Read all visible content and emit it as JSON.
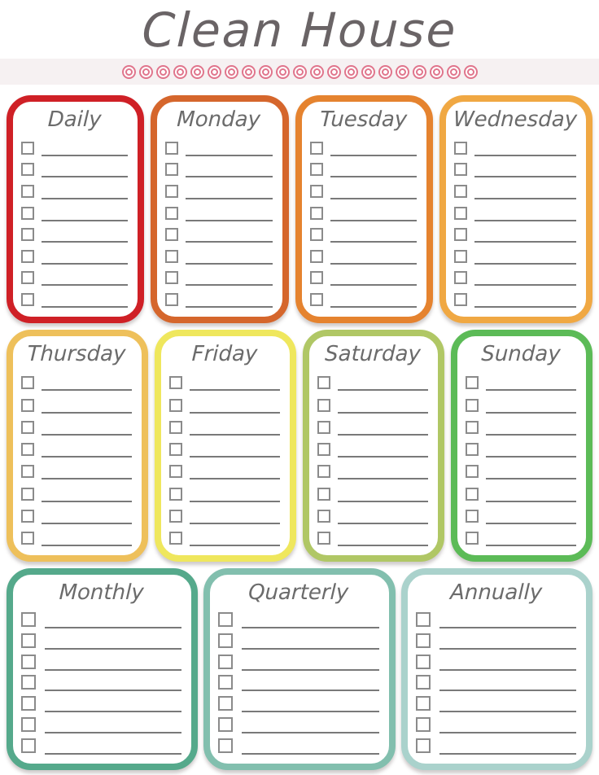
{
  "page": {
    "title": "Clean House",
    "title_color": "#6a6466",
    "background": "#ffffff"
  },
  "decor": {
    "circle_count": 21,
    "circle_color": "#e0758c",
    "band_color": "#f6f1f2"
  },
  "colors": {
    "card_title_text": "#6b6b6b",
    "checkbox_border": "#8b8b8b",
    "writing_line": "#797979"
  },
  "sections": [
    {
      "name": "week-row-1",
      "columns": 4,
      "cards": [
        {
          "label": "Daily",
          "border_color": "#cf2026",
          "lines": 8
        },
        {
          "label": "Monday",
          "border_color": "#d5662c",
          "lines": 8
        },
        {
          "label": "Tuesday",
          "border_color": "#e5832f",
          "lines": 8
        },
        {
          "label": "Wednesday",
          "border_color": "#f0a843",
          "lines": 8
        }
      ]
    },
    {
      "name": "week-row-2",
      "columns": 4,
      "cards": [
        {
          "label": "Thursday",
          "border_color": "#eec05b",
          "lines": 8
        },
        {
          "label": "Friday",
          "border_color": "#efe75d",
          "lines": 8
        },
        {
          "label": "Saturday",
          "border_color": "#b0c765",
          "lines": 8
        },
        {
          "label": "Sunday",
          "border_color": "#5cbb57",
          "lines": 8
        }
      ]
    },
    {
      "name": "period-row",
      "columns": 3,
      "cards": [
        {
          "label": "Monthly",
          "border_color": "#55a98b",
          "lines": 7
        },
        {
          "label": "Quarterly",
          "border_color": "#82bfae",
          "lines": 7
        },
        {
          "label": "Annually",
          "border_color": "#aad2cc",
          "lines": 7
        }
      ]
    }
  ]
}
